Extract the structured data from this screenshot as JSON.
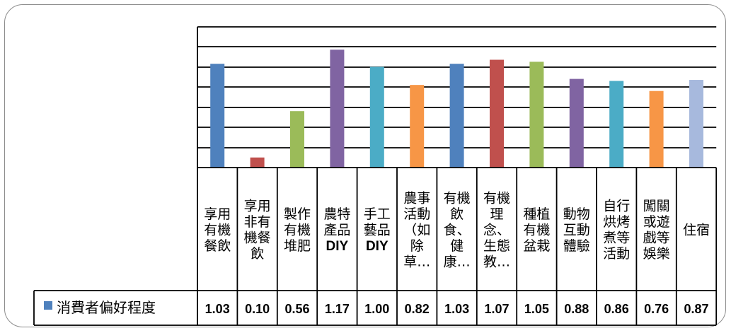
{
  "chart_data": {
    "type": "bar",
    "title": "",
    "xlabel": "",
    "ylabel": "",
    "ylim": [
      0,
      1.2
    ],
    "grid": true,
    "legend": "bottom-left, inside data table",
    "categories": [
      [
        "享用",
        "有機",
        "餐飲"
      ],
      [
        "享用",
        "非有",
        "機餐",
        "飲"
      ],
      [
        "製作",
        "有機",
        "堆肥"
      ],
      [
        "農特",
        "產品",
        "DIY"
      ],
      [
        "手工",
        "藝品",
        "DIY"
      ],
      [
        "農事",
        "活動",
        "（如",
        "除",
        "草…"
      ],
      [
        "有機",
        "飲",
        "食、",
        "健",
        "康…"
      ],
      [
        "有機",
        "理",
        "念、",
        "生態",
        "教…"
      ],
      [
        "種植",
        "有機",
        "盆栽"
      ],
      [
        "動物",
        "互動",
        "體驗"
      ],
      [
        "自行",
        "烘烤",
        "煮等",
        "活動"
      ],
      [
        "闖關",
        "或遊",
        "戲等",
        "娛樂"
      ],
      [
        "住宿"
      ]
    ],
    "series": [
      {
        "name": "消費者偏好程度",
        "values": [
          1.03,
          0.1,
          0.56,
          1.17,
          1.0,
          0.82,
          1.03,
          1.07,
          1.05,
          0.88,
          0.86,
          0.76,
          0.87
        ],
        "labels": [
          "1.03",
          "0.10",
          "0.56",
          "1.17",
          "1.00",
          "0.82",
          "1.03",
          "1.07",
          "1.05",
          "0.88",
          "0.86",
          "0.76",
          "0.87"
        ],
        "colors": [
          "#4F81BD",
          "#C0504D",
          "#9BBB59",
          "#8064A2",
          "#4BACC6",
          "#F79646",
          "#4F81BD",
          "#C0504D",
          "#9BBB59",
          "#8064A2",
          "#4BACC6",
          "#F79646",
          "#A7B9DD"
        ]
      }
    ],
    "legend_color": "#4F81BD"
  }
}
